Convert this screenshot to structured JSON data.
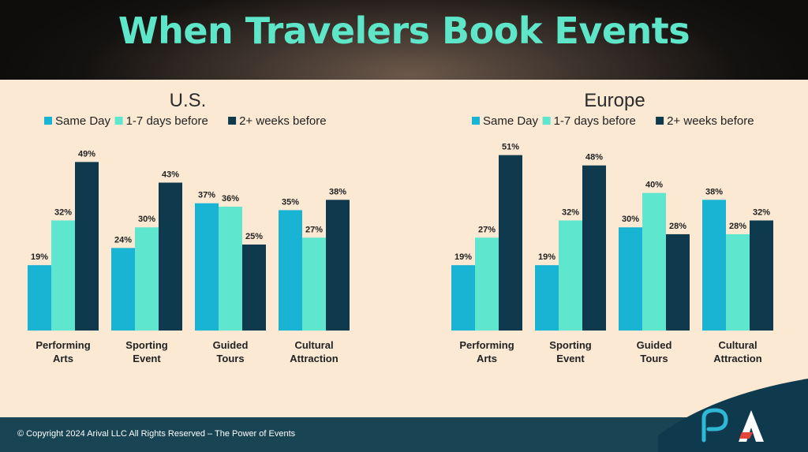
{
  "header": {
    "title": "When Travelers Book Events"
  },
  "footer": {
    "copyright": "© Copyright 2024 Arival LLC All Rights Reserved – The Power of Events"
  },
  "colors": {
    "same_day": "#19b3d3",
    "days_1_7": "#5ee6cf",
    "weeks_2": "#0f3a4e"
  },
  "chart_data": [
    {
      "type": "bar",
      "title": "U.S.",
      "categories": [
        [
          "Performing",
          "Arts"
        ],
        [
          "Sporting",
          "Event"
        ],
        [
          "Guided",
          "Tours"
        ],
        [
          "Cultural",
          "Attraction"
        ]
      ],
      "series": [
        {
          "name": "Same Day",
          "values": [
            19,
            24,
            37,
            35
          ],
          "labels": [
            "19%",
            "24%",
            "37%",
            "35%"
          ]
        },
        {
          "name": "1-7 days before",
          "values": [
            32,
            30,
            36,
            27
          ],
          "labels": [
            "32%",
            "30%",
            "36%",
            "27%"
          ]
        },
        {
          "name": "2+ weeks before",
          "values": [
            49,
            43,
            25,
            38
          ],
          "labels": [
            "49%",
            "43%",
            "25%",
            "38%"
          ]
        }
      ],
      "ylim": [
        0,
        100
      ],
      "legend": "top",
      "grid": false
    },
    {
      "type": "bar",
      "title": "Europe",
      "categories": [
        [
          "Performing",
          "Arts"
        ],
        [
          "Sporting",
          "Event"
        ],
        [
          "Guided",
          "Tours"
        ],
        [
          "Cultural",
          "Attraction"
        ]
      ],
      "series": [
        {
          "name": "Same Day",
          "values": [
            19,
            19,
            30,
            38
          ],
          "labels": [
            "19%",
            "19%",
            "30%",
            "38%"
          ]
        },
        {
          "name": "1-7 days before",
          "values": [
            27,
            32,
            40,
            28
          ],
          "labels": [
            "27%",
            "32%",
            "40%",
            "28%"
          ]
        },
        {
          "name": "2+ weeks before",
          "values": [
            51,
            48,
            28,
            32
          ],
          "labels": [
            "51%",
            "48%",
            "28%",
            "32%"
          ]
        }
      ],
      "ylim": [
        0,
        100
      ],
      "legend": "top",
      "grid": false
    }
  ]
}
